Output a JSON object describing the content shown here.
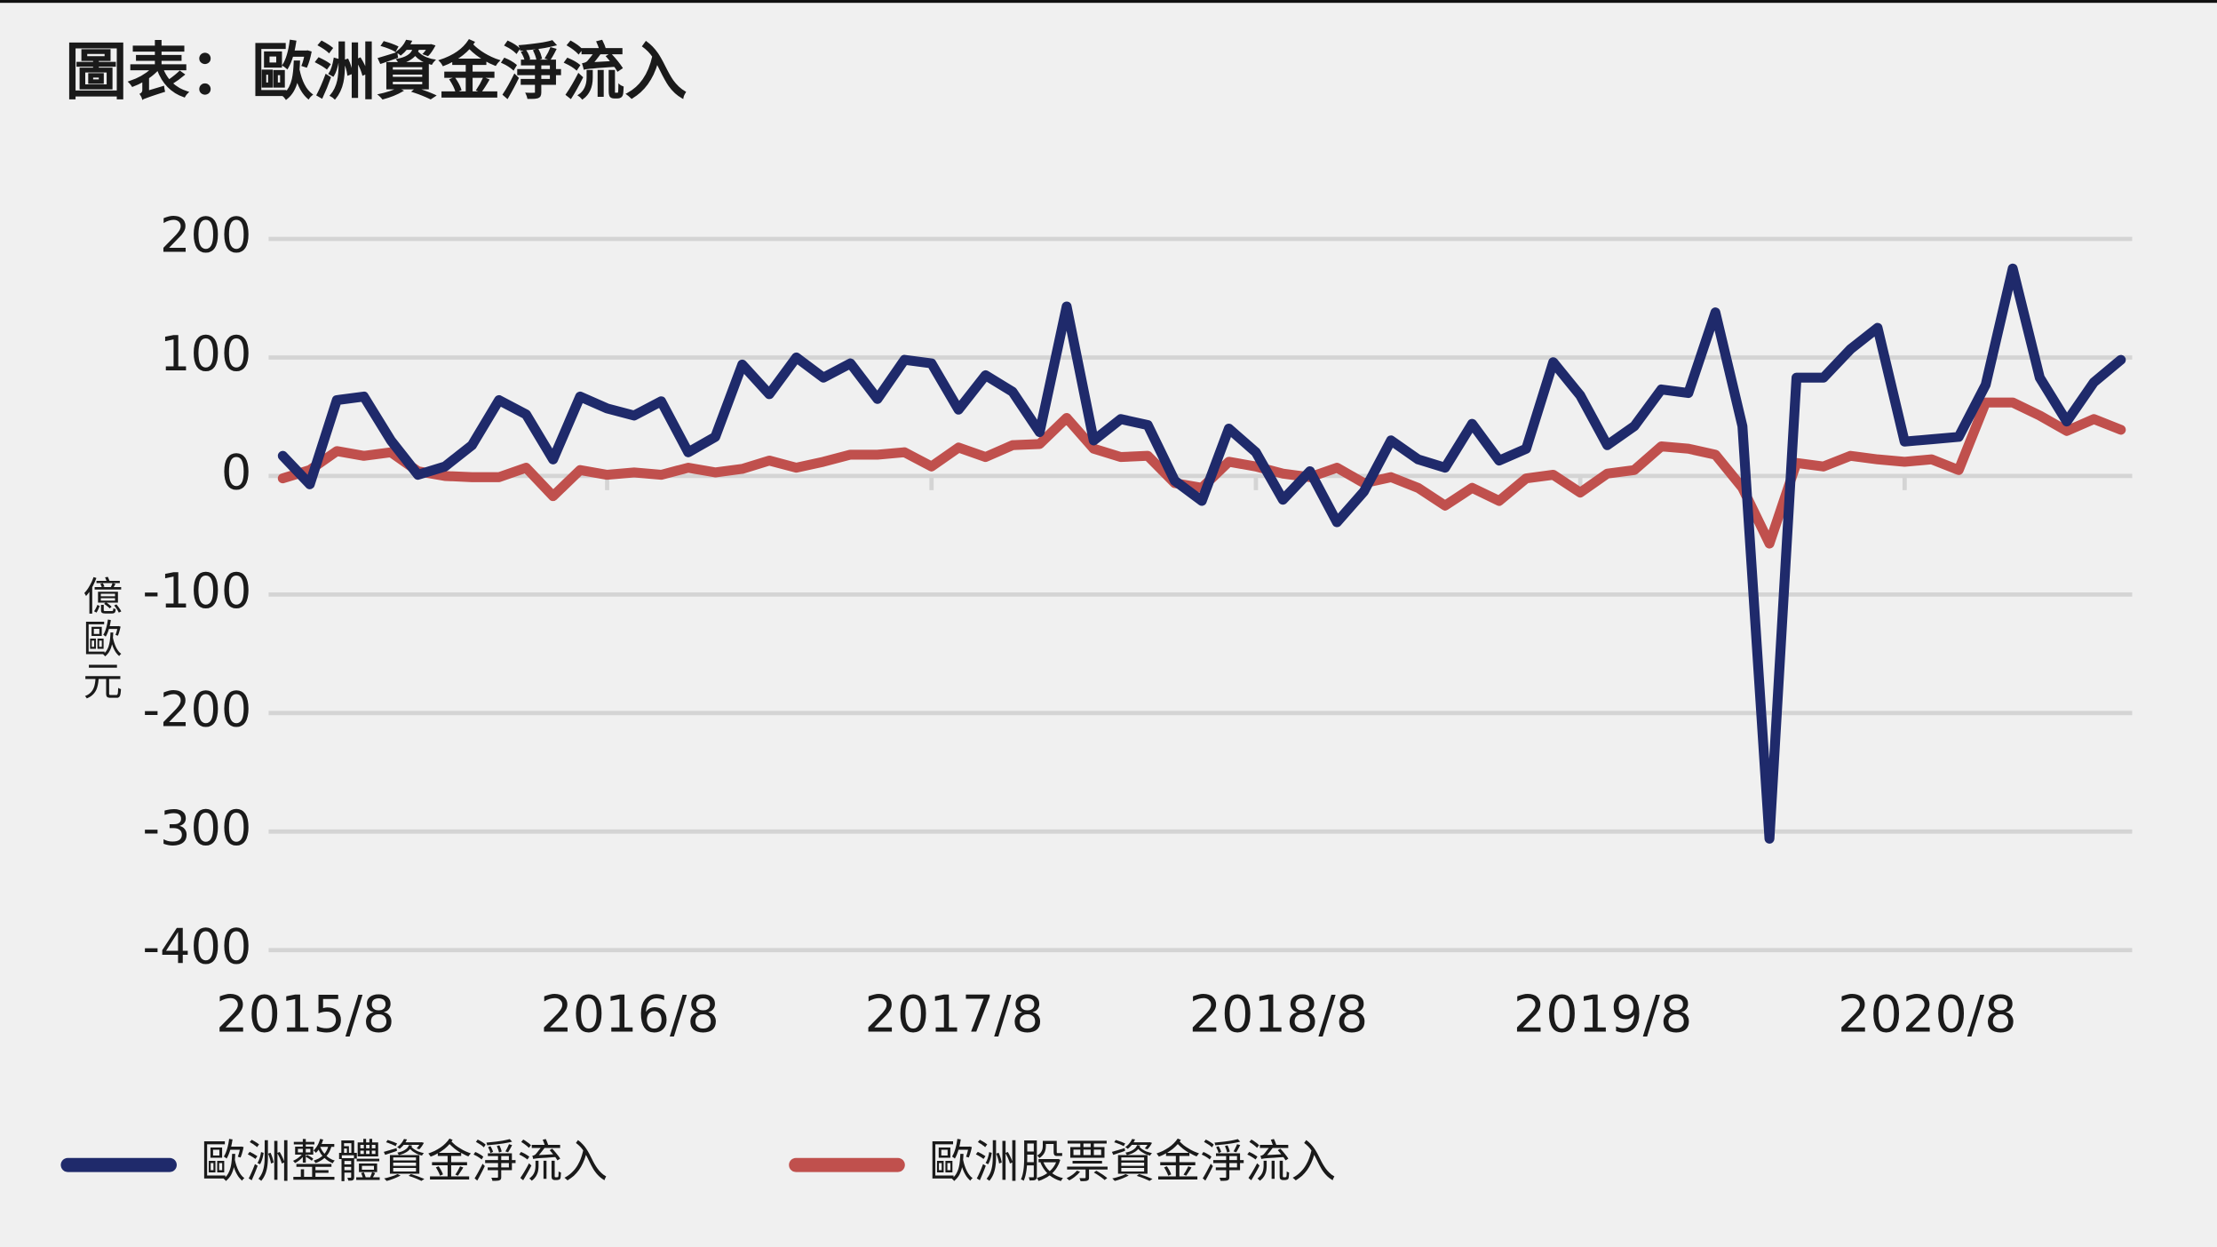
{
  "chart_data": {
    "type": "line",
    "title": "圖表：歐洲資金淨流入",
    "y_label": "億歐元",
    "categories": [
      "2015/8",
      null,
      null,
      null,
      null,
      null,
      null,
      null,
      null,
      null,
      null,
      null,
      "2016/8",
      null,
      null,
      null,
      null,
      null,
      null,
      null,
      null,
      null,
      null,
      null,
      "2017/8",
      null,
      null,
      null,
      null,
      null,
      null,
      null,
      null,
      null,
      null,
      null,
      "2018/8",
      null,
      null,
      null,
      null,
      null,
      null,
      null,
      null,
      null,
      null,
      null,
      "2019/8",
      null,
      null,
      null,
      null,
      null,
      null,
      null,
      null,
      null,
      null,
      null,
      "2020/8",
      null,
      null,
      null,
      null,
      null,
      null,
      null,
      null
    ],
    "series": [
      {
        "name": "歐洲整體資金淨流入",
        "color": "#1f2a6b",
        "values": [
          17,
          -7,
          64,
          67,
          30,
          1,
          8,
          26,
          64,
          52,
          14,
          67,
          57,
          51,
          63,
          20,
          33,
          94,
          69,
          100,
          83,
          95,
          65,
          98,
          95,
          56,
          85,
          71,
          37,
          143,
          30,
          48,
          43,
          -4,
          -21,
          40,
          20,
          -20,
          4,
          -39,
          -13,
          30,
          14,
          7,
          44,
          13,
          23,
          96,
          68,
          26,
          42,
          73,
          70,
          138,
          42,
          -306,
          83,
          83,
          107,
          125,
          29,
          31,
          33,
          77,
          175,
          83,
          46,
          79,
          98
        ]
      },
      {
        "name": "歐洲股票資金淨流入",
        "color": "#c0504d",
        "values": [
          -2,
          5,
          21,
          17,
          20,
          4,
          0,
          -1,
          -1,
          7,
          -17,
          5,
          1,
          3,
          1,
          7,
          3,
          6,
          13,
          7,
          12,
          18,
          18,
          20,
          8,
          24,
          16,
          26,
          27,
          49,
          23,
          16,
          17,
          -6,
          -10,
          12,
          8,
          2,
          -1,
          7,
          -6,
          -1,
          -10,
          -25,
          -10,
          -21,
          -2,
          1,
          -14,
          2,
          5,
          25,
          23,
          18,
          -10,
          -57,
          11,
          8,
          17,
          14,
          12,
          14,
          5,
          62,
          62,
          51,
          38,
          48,
          39
        ]
      }
    ],
    "ylim": [
      -400,
      200
    ],
    "yticks": [
      -400,
      -300,
      -200,
      -100,
      0,
      100,
      200
    ],
    "grid": true,
    "legend": "bottom"
  }
}
